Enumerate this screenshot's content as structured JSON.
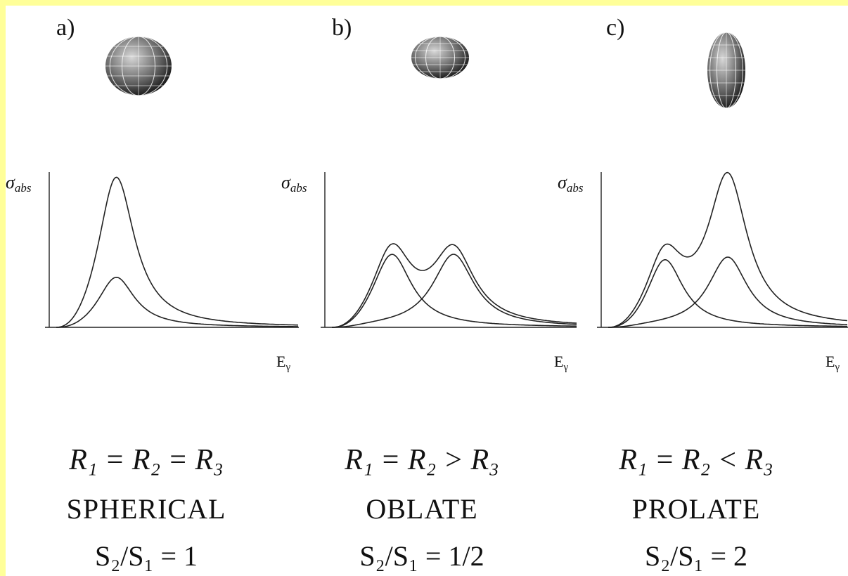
{
  "panels": [
    {
      "label": "a)",
      "y_axis": {
        "symbol": "σ",
        "subscript": "abs"
      },
      "x_axis": {
        "symbol": "E",
        "subscript": "γ"
      },
      "relation": "R₁ = R₂ = R₃",
      "shape": "SPHERICAL",
      "ratio": "S₂/S₁ = 1"
    },
    {
      "label": "b)",
      "y_axis": {
        "symbol": "σ",
        "subscript": "abs"
      },
      "x_axis": {
        "symbol": "E",
        "subscript": "γ"
      },
      "relation": "R₁ = R₂ > R₃",
      "shape": "OBLATE",
      "ratio": "S₂/S₁ = 1/2"
    },
    {
      "label": "c)",
      "y_axis": {
        "symbol": "σ",
        "subscript": "abs"
      },
      "x_axis": {
        "symbol": "E",
        "subscript": "γ"
      },
      "relation": "R₁ = R₂ < R₃",
      "shape": "PROLATE",
      "ratio": "S₂/S₁ = 2"
    }
  ]
}
